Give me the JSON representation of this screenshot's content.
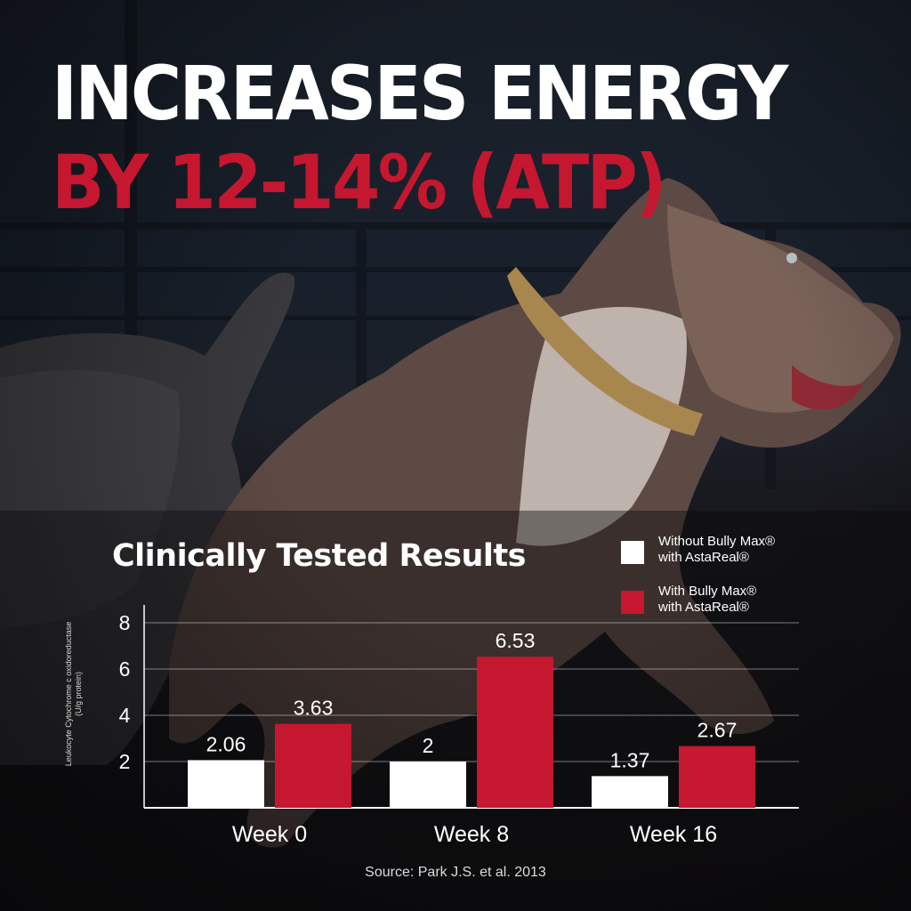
{
  "headline": {
    "line1": "INCREASES ENERGY",
    "line2": "BY 12-14% (ATP)"
  },
  "colors": {
    "accent_red": "#c5172f",
    "white": "#ffffff"
  },
  "chart_data": {
    "type": "bar",
    "title": "Clinically Tested Results",
    "categories": [
      "Week 0",
      "Week 8",
      "Week 16"
    ],
    "series": [
      {
        "name": "Without Bully Max® with AstaReal®",
        "color": "#ffffff",
        "values": [
          2.06,
          2,
          1.37
        ],
        "labels": [
          "2.06",
          "2",
          "1.37"
        ]
      },
      {
        "name": "With Bully Max® with AstaReal®",
        "color": "#c5172f",
        "values": [
          3.63,
          6.53,
          2.67
        ],
        "labels": [
          "3.63",
          "6.53",
          "2.67"
        ]
      }
    ],
    "ylabel_line1": "Leukocyte Cytochrome c oxidoreductase",
    "ylabel_line2": "(U/g protein)",
    "ylim": [
      0,
      8
    ],
    "yticks": [
      2,
      4,
      6,
      8
    ],
    "grid": true,
    "legend_position": "top-right"
  },
  "legend": {
    "item1": "Without Bully Max®\nwith AstaReal®",
    "item2": "With Bully Max®\nwith AstaReal®"
  },
  "source": "Source: Park J.S. et al. 2013"
}
